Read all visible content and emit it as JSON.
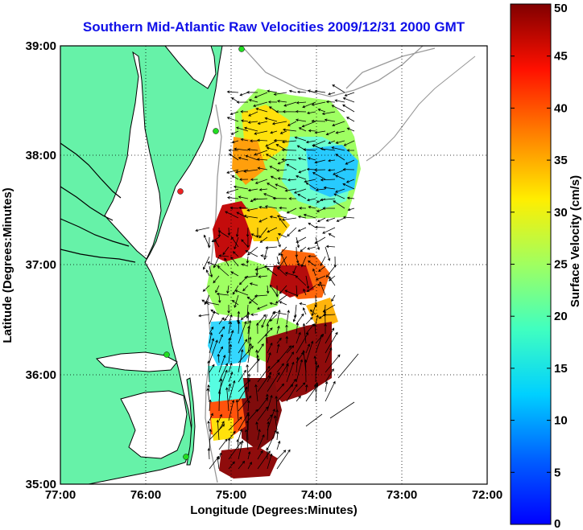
{
  "title": "Southern Mid-Atlantic Raw Velocities 2009/12/31 2000 GMT",
  "map": {
    "x_axis": {
      "label": "Longitude (Degrees:Minutes)",
      "ticks": [
        "77:00",
        "76:00",
        "75:00",
        "74:00",
        "73:00",
        "72:00"
      ]
    },
    "y_axis": {
      "label": "Latitude (Degrees:Minutes)",
      "ticks": [
        "39:00",
        "38:00",
        "37:00",
        "36:00",
        "35:00"
      ]
    },
    "grid": "dotted",
    "colors": {
      "land": "#66f2a8",
      "title": "#1010e8",
      "bathymetry": "#999999",
      "station": "#22dd22",
      "station_inactive": "#ee2222"
    }
  },
  "colorbar": {
    "label": "Surface Velocity (cm/s)",
    "min": 0,
    "max": 50,
    "ticks": [
      "50",
      "45",
      "40",
      "35",
      "30",
      "25",
      "20",
      "15",
      "10",
      "5",
      "0"
    ]
  }
}
